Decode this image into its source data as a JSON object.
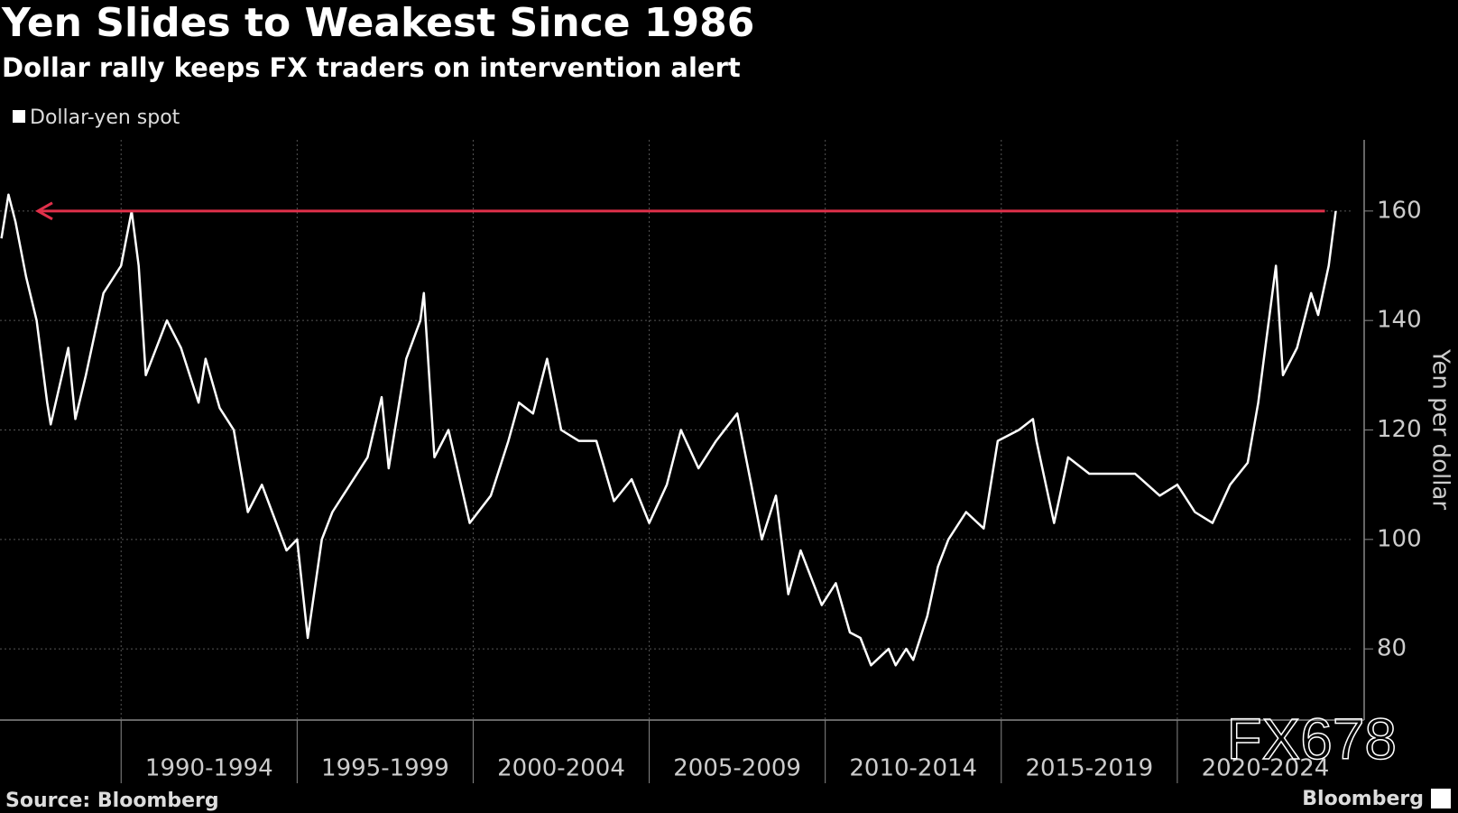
{
  "chart_data": {
    "type": "line",
    "title": "Yen Slides to Weakest Since 1986",
    "subtitle": "Dollar rally keeps FX traders on intervention alert",
    "y_label": "Yen per dollar",
    "source": "Source: Bloomberg",
    "brand": "Bloomberg",
    "watermark": "FX678",
    "x": [
      1986.6,
      1986.8,
      1987.0,
      1987.3,
      1987.6,
      1987.9,
      1988.0,
      1988.5,
      1988.7,
      1989.0,
      1989.5,
      1990.0,
      1990.3,
      1990.5,
      1990.7,
      1991.3,
      1991.7,
      1992.2,
      1992.4,
      1992.8,
      1993.2,
      1993.6,
      1994.0,
      1994.7,
      1995.0,
      1995.3,
      1995.7,
      1996.0,
      1996.5,
      1997.0,
      1997.4,
      1997.6,
      1997.9,
      1998.1,
      1998.5,
      1998.6,
      1998.9,
      1999.3,
      1999.9,
      2000.5,
      2001.0,
      2001.3,
      2001.7,
      2002.1,
      2002.5,
      2003.0,
      2003.5,
      2004.0,
      2004.5,
      2005.0,
      2005.5,
      2005.9,
      2006.4,
      2006.9,
      2007.5,
      2007.9,
      2008.2,
      2008.6,
      2008.95,
      2009.3,
      2009.9,
      2010.3,
      2010.7,
      2011.0,
      2011.3,
      2011.8,
      2012.0,
      2012.3,
      2012.5,
      2012.9,
      2013.2,
      2013.5,
      2014.0,
      2014.5,
      2014.9,
      2015.5,
      2015.9,
      2016.0,
      2016.5,
      2016.9,
      2017.5,
      2018.0,
      2018.8,
      2019.5,
      2020.0,
      2020.5,
      2021.0,
      2021.5,
      2022.0,
      2022.3,
      2022.5,
      2022.8,
      2023.0,
      2023.4,
      2023.8,
      2024.0,
      2024.3,
      2024.5
    ],
    "series": [
      {
        "name": "Dollar-yen spot",
        "color": "#ffffff",
        "values": [
          155,
          163,
          158,
          148,
          140,
          125,
          121,
          135,
          122,
          130,
          145,
          150,
          160,
          150,
          130,
          140,
          135,
          125,
          133,
          124,
          120,
          105,
          110,
          98,
          100,
          82,
          100,
          105,
          110,
          115,
          126,
          113,
          125,
          133,
          140,
          145,
          115,
          120,
          103,
          108,
          118,
          125,
          123,
          133,
          120,
          118,
          118,
          107,
          111,
          103,
          110,
          120,
          113,
          118,
          123,
          110,
          100,
          108,
          90,
          98,
          88,
          92,
          83,
          82,
          77,
          80,
          77,
          80,
          78,
          86,
          95,
          100,
          105,
          102,
          118,
          120,
          122,
          118,
          103,
          115,
          112,
          112,
          112,
          108,
          110,
          105,
          103,
          110,
          114,
          125,
          135,
          150,
          130,
          135,
          145,
          141,
          150,
          160
        ]
      }
    ],
    "reference_line": 160,
    "reference_color": "#e0304a",
    "xlim": [
      1986.56,
      2025.0
    ],
    "xticks": [
      {
        "value": 1990,
        "label": "1990-1994"
      },
      {
        "value": 1995,
        "label": "1995-1999"
      },
      {
        "value": 2000,
        "label": "2000-2004"
      },
      {
        "value": 2005,
        "label": "2005-2009"
      },
      {
        "value": 2010,
        "label": "2010-2014"
      },
      {
        "value": 2015,
        "label": "2015-2019"
      },
      {
        "value": 2020,
        "label": "2020-2024"
      }
    ],
    "ylim": [
      67,
      173
    ],
    "yticks": [
      80,
      100,
      120,
      140,
      160
    ],
    "grid": true
  }
}
